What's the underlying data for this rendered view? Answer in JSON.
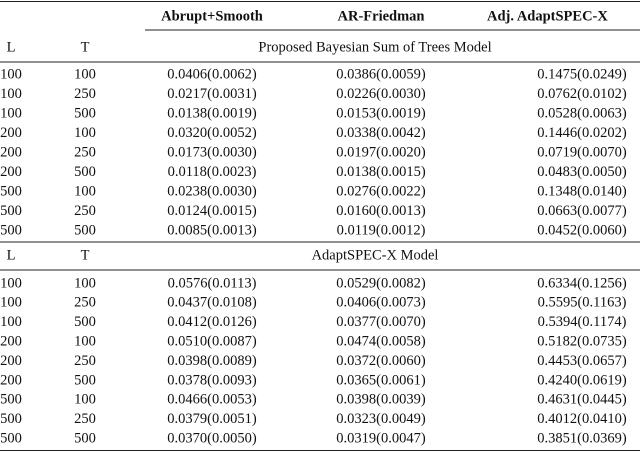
{
  "table": {
    "columns": [
      "Abrupt+Smooth",
      "AR-Friedman",
      "Adj. AdaptSPEC-X"
    ],
    "sections": [
      {
        "headers": [
          "L",
          "T"
        ],
        "title": "Proposed Bayesian Sum of Trees Model",
        "rows": [
          [
            "100",
            "100",
            "0.0406(0.0062)",
            "0.0386(0.0059)",
            "0.1475(0.0249)"
          ],
          [
            "100",
            "250",
            "0.0217(0.0031)",
            "0.0226(0.0030)",
            "0.0762(0.0102)"
          ],
          [
            "100",
            "500",
            "0.0138(0.0019)",
            "0.0153(0.0019)",
            "0.0528(0.0063)"
          ],
          [
            "200",
            "100",
            "0.0320(0.0052)",
            "0.0338(0.0042)",
            "0.1446(0.0202)"
          ],
          [
            "200",
            "250",
            "0.0173(0.0030)",
            "0.0197(0.0020)",
            "0.0719(0.0070)"
          ],
          [
            "200",
            "500",
            "0.0118(0.0023)",
            "0.0138(0.0015)",
            "0.0483(0.0050)"
          ],
          [
            "500",
            "100",
            "0.0238(0.0030)",
            "0.0276(0.0022)",
            "0.1348(0.0140)"
          ],
          [
            "500",
            "250",
            "0.0124(0.0015)",
            "0.0160(0.0013)",
            "0.0663(0.0077)"
          ],
          [
            "500",
            "500",
            "0.0085(0.0013)",
            "0.0119(0.0012)",
            "0.0452(0.0060)"
          ]
        ]
      },
      {
        "headers": [
          "L",
          "T"
        ],
        "title": "AdaptSPEC-X Model",
        "rows": [
          [
            "100",
            "100",
            "0.0576(0.0113)",
            "0.0529(0.0082)",
            "0.6334(0.1256)"
          ],
          [
            "100",
            "250",
            "0.0437(0.0108)",
            "0.0406(0.0073)",
            "0.5595(0.1163)"
          ],
          [
            "100",
            "500",
            "0.0412(0.0126)",
            "0.0377(0.0070)",
            "0.5394(0.1174)"
          ],
          [
            "200",
            "100",
            "0.0510(0.0087)",
            "0.0474(0.0058)",
            "0.5182(0.0735)"
          ],
          [
            "200",
            "250",
            "0.0398(0.0089)",
            "0.0372(0.0060)",
            "0.4453(0.0657)"
          ],
          [
            "200",
            "500",
            "0.0378(0.0093)",
            "0.0365(0.0061)",
            "0.4240(0.0619)"
          ],
          [
            "500",
            "100",
            "0.0466(0.0053)",
            "0.0398(0.0039)",
            "0.4631(0.0445)"
          ],
          [
            "500",
            "250",
            "0.0379(0.0051)",
            "0.0323(0.0049)",
            "0.4012(0.0410)"
          ],
          [
            "500",
            "500",
            "0.0370(0.0050)",
            "0.0319(0.0047)",
            "0.3851(0.0369)"
          ]
        ]
      }
    ]
  }
}
